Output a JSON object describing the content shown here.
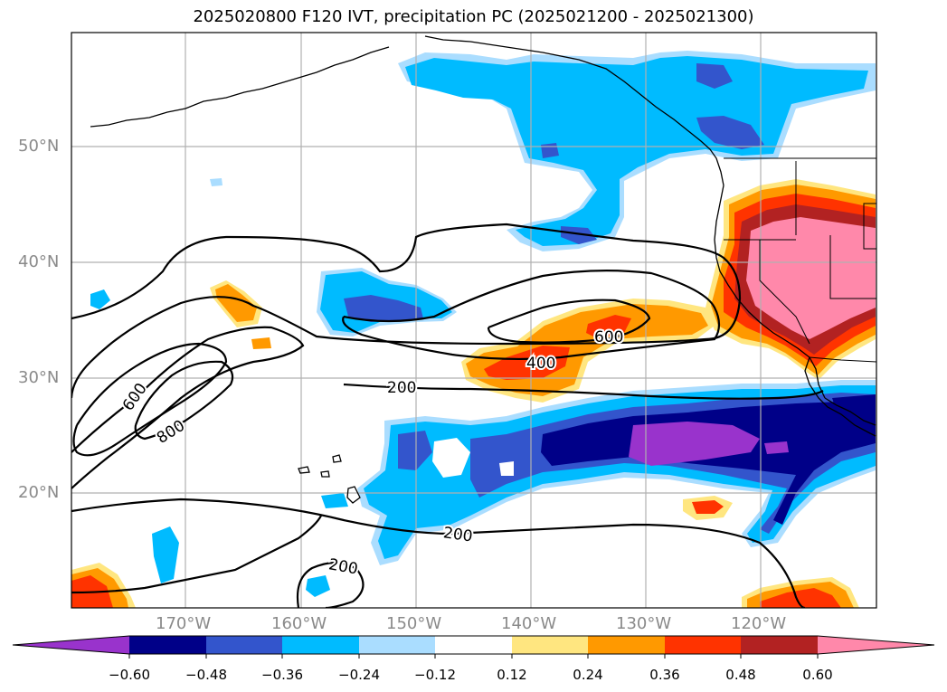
{
  "title": "2025020800 F120 IVT, precipitation PC (2025021200 - 2025021300)",
  "lat_labels": [
    "50°N",
    "40°N",
    "30°N",
    "20°N"
  ],
  "lon_labels": [
    "170°W",
    "160°W",
    "150°W",
    "140°W",
    "130°W",
    "120°W"
  ],
  "contour_labels": [
    "600",
    "800",
    "200",
    "400",
    "600",
    "200",
    "200"
  ],
  "colorbar": {
    "tick_labels": [
      "−0.60",
      "−0.48",
      "−0.36",
      "−0.24",
      "−0.12",
      "0.12",
      "0.24",
      "0.36",
      "0.48",
      "0.60"
    ],
    "colors": [
      "#9933cc",
      "#000088",
      "#3355cc",
      "#00bbff",
      "#aaddff",
      "#ffffff",
      "#ffe680",
      "#ff9900",
      "#ff3300",
      "#b22222",
      "#ff88aa",
      "#ff88aa"
    ]
  },
  "colors": {
    "grid": "#b0b0b0",
    "contour": "#000000",
    "coast": "#000000"
  }
}
